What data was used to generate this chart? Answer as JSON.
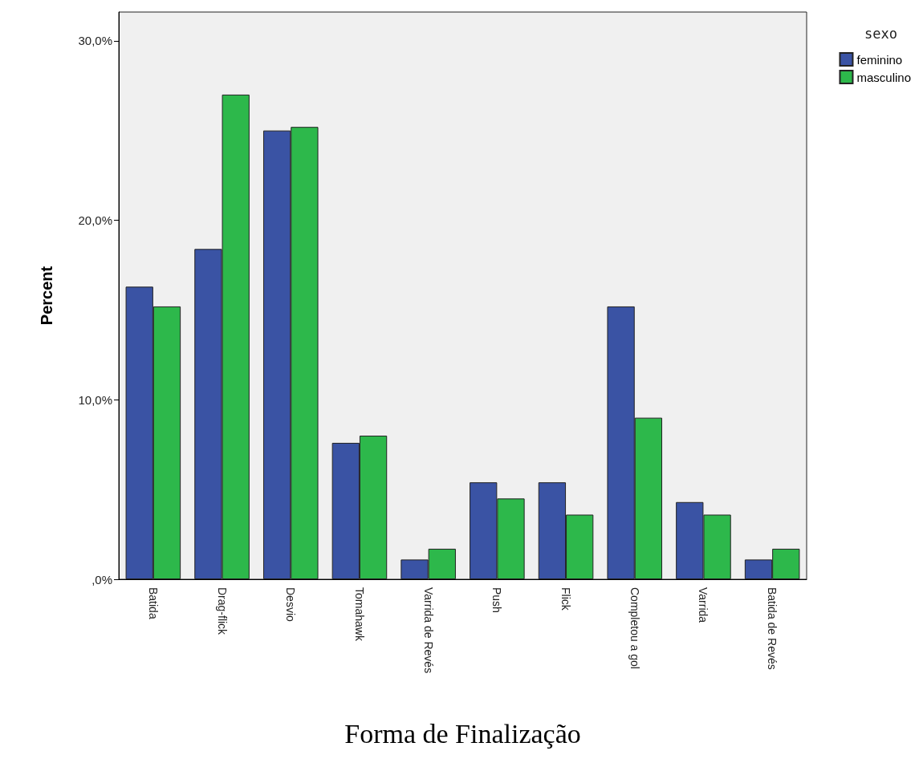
{
  "chart_data": {
    "type": "bar",
    "xlabel": "Forma de Finalização",
    "ylabel": "Percent",
    "legend_title": "sexo",
    "legend": "top right",
    "grid": false,
    "categories": [
      "Batida",
      "Drag-flick",
      "Desvio",
      "Tomahawk",
      "Varrida de Revés",
      "Push",
      "Flick",
      "Completou a gol",
      "Varrida",
      "Batida de Revés"
    ],
    "series": [
      {
        "name": "feminino",
        "color": "#3a53a4",
        "values": [
          16.3,
          18.4,
          25.0,
          7.6,
          1.1,
          5.4,
          5.4,
          15.2,
          4.3,
          1.1
        ]
      },
      {
        "name": "masculino",
        "color": "#2db84b",
        "values": [
          15.2,
          27.0,
          25.2,
          8.0,
          1.7,
          4.5,
          3.6,
          9.0,
          3.6,
          1.7
        ]
      }
    ],
    "ylim": [
      0,
      31.6
    ],
    "yticks": [
      {
        "value": 0,
        "label": ",0%"
      },
      {
        "value": 10,
        "label": "10,0%"
      },
      {
        "value": 20,
        "label": "20,0%"
      },
      {
        "value": 30,
        "label": "30,0%"
      }
    ]
  }
}
